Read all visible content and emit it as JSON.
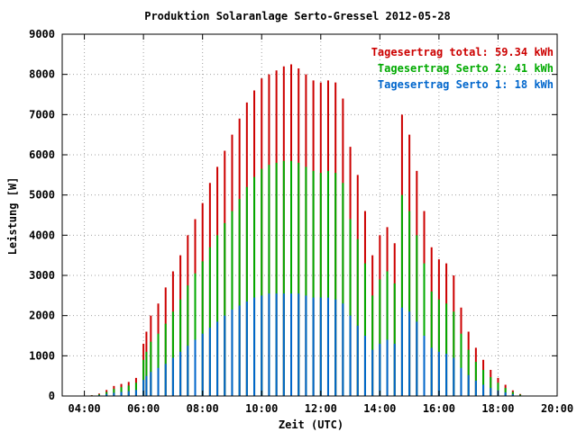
{
  "chart_data": {
    "type": "bar",
    "title": "Produktion Solaranlage Serto-Gressel 2012-05-28",
    "xlabel": "Zeit (UTC)",
    "ylabel": "Leistung [W]",
    "xlim": [
      3.25,
      20.0
    ],
    "ylim": [
      0,
      9000
    ],
    "grid": true,
    "legend_position": "top-right",
    "x_ticks": [
      "04:00",
      "06:00",
      "08:00",
      "10:00",
      "12:00",
      "14:00",
      "16:00",
      "18:00",
      "20:00"
    ],
    "y_ticks": [
      "0",
      "1000",
      "2000",
      "3000",
      "4000",
      "5000",
      "6000",
      "7000",
      "8000",
      "9000"
    ],
    "x_tick_values": [
      4,
      6,
      8,
      10,
      12,
      14,
      16,
      18,
      20
    ],
    "y_tick_values": [
      0,
      1000,
      2000,
      3000,
      4000,
      5000,
      6000,
      7000,
      8000,
      9000
    ],
    "x_hours": [
      4.0,
      4.25,
      4.5,
      4.75,
      5.0,
      5.25,
      5.5,
      5.75,
      6.0,
      6.1,
      6.25,
      6.5,
      6.75,
      7.0,
      7.25,
      7.5,
      7.75,
      8.0,
      8.25,
      8.5,
      8.75,
      9.0,
      9.25,
      9.5,
      9.75,
      10.0,
      10.25,
      10.5,
      10.75,
      11.0,
      11.25,
      11.5,
      11.75,
      12.0,
      12.25,
      12.5,
      12.75,
      13.0,
      13.25,
      13.5,
      13.75,
      14.0,
      14.25,
      14.5,
      14.75,
      15.0,
      15.25,
      15.5,
      15.75,
      16.0,
      16.25,
      16.5,
      16.75,
      17.0,
      17.25,
      17.5,
      17.75,
      18.0,
      18.25,
      18.5,
      18.75,
      19.0
    ],
    "series": [
      {
        "name": "Tagesertrag total: 59.34 kWh",
        "color": "#cc0000",
        "values": [
          0,
          20,
          60,
          150,
          250,
          300,
          350,
          450,
          1300,
          1600,
          2000,
          2300,
          2700,
          3100,
          3500,
          4000,
          4400,
          4800,
          5300,
          5700,
          6100,
          6500,
          6900,
          7300,
          7600,
          7900,
          8000,
          8100,
          8200,
          8250,
          8150,
          8000,
          7850,
          7800,
          7850,
          7800,
          7400,
          6200,
          5500,
          4600,
          3500,
          4000,
          4200,
          3800,
          7000,
          6500,
          5600,
          4600,
          3700,
          3400,
          3300,
          3000,
          2200,
          1600,
          1200,
          900,
          650,
          450,
          280,
          140,
          50,
          10
        ]
      },
      {
        "name": "Tagesertrag Serto 2: 41 kWh",
        "color": "#00aa00",
        "values": [
          0,
          15,
          40,
          100,
          180,
          220,
          260,
          330,
          900,
          1100,
          1350,
          1550,
          1800,
          2100,
          2400,
          2750,
          3050,
          3350,
          3700,
          4000,
          4300,
          4600,
          4900,
          5200,
          5450,
          5650,
          5750,
          5800,
          5850,
          5850,
          5800,
          5700,
          5600,
          5550,
          5600,
          5550,
          5300,
          4400,
          3900,
          3300,
          2500,
          2900,
          3100,
          2800,
          5000,
          4600,
          4000,
          3300,
          2600,
          2400,
          2300,
          2100,
          1550,
          1150,
          850,
          650,
          470,
          330,
          200,
          100,
          35,
          5
        ]
      },
      {
        "name": "Tagesertrag Serto 1: 18 kWh",
        "color": "#0066cc",
        "values": [
          0,
          5,
          20,
          50,
          80,
          100,
          120,
          150,
          400,
          500,
          600,
          700,
          800,
          950,
          1100,
          1250,
          1400,
          1550,
          1700,
          1850,
          2000,
          2150,
          2250,
          2350,
          2450,
          2500,
          2550,
          2550,
          2550,
          2550,
          2550,
          2500,
          2450,
          2450,
          2450,
          2400,
          2300,
          2000,
          1750,
          1500,
          1150,
          1300,
          1400,
          1300,
          2200,
          2100,
          1850,
          1500,
          1200,
          1100,
          1050,
          950,
          700,
          520,
          380,
          280,
          200,
          140,
          90,
          45,
          15,
          2
        ]
      }
    ]
  }
}
